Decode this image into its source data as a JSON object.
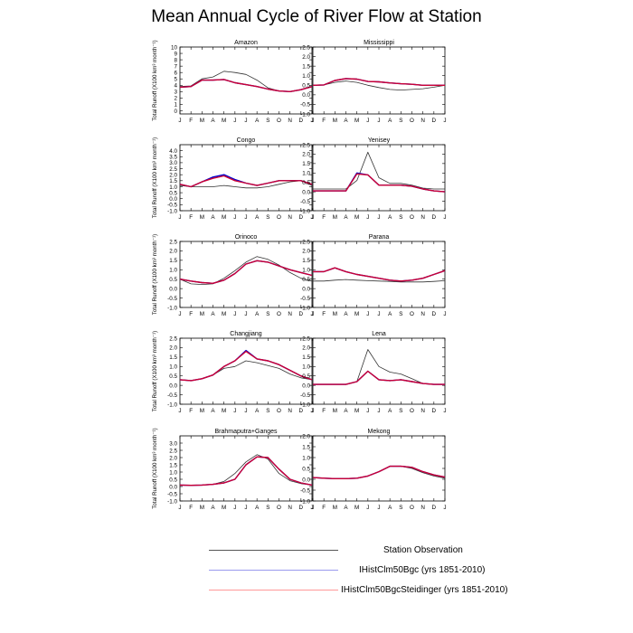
{
  "title": "Mean Annual Cycle of River Flow at Station",
  "months": [
    "J",
    "F",
    "M",
    "A",
    "M",
    "J",
    "J",
    "A",
    "S",
    "O",
    "N",
    "D",
    "J"
  ],
  "ylabel": "Total Runoff (X100 km³ month⁻¹)",
  "legend": [
    {
      "label": "Station Observation",
      "color": "#555555"
    },
    {
      "label": "IHistClm50Bgc (yrs 1851-2010)",
      "color": "#9999ee"
    },
    {
      "label": "IHistClm50BgcSteidinger (yrs 1851-2010)",
      "color": "#ff9999"
    }
  ],
  "series_colors": {
    "obs": "#333333",
    "bgc": "#0000cc",
    "steid": "#cc0033"
  },
  "chart_data": [
    {
      "type": "line",
      "title": "Amazon",
      "ylim": [
        -0.5,
        10
      ],
      "ticks": [
        0,
        1,
        2,
        3,
        4,
        5,
        6,
        7,
        8,
        9,
        10
      ],
      "series": [
        {
          "values": [
            3.8,
            3.9,
            5.0,
            5.3,
            6.2,
            6.0,
            5.7,
            4.8,
            3.6,
            3.1,
            3.0,
            3.3,
            3.8
          ]
        },
        {
          "values": [
            3.7,
            3.8,
            4.8,
            4.8,
            4.9,
            4.4,
            4.1,
            3.8,
            3.4,
            3.1,
            3.0,
            3.3,
            3.8
          ]
        },
        {
          "values": [
            3.7,
            3.8,
            4.8,
            4.8,
            4.9,
            4.4,
            4.1,
            3.8,
            3.4,
            3.1,
            3.0,
            3.3,
            3.8
          ]
        }
      ]
    },
    {
      "type": "line",
      "title": "Mississippi",
      "ylim": [
        -1.0,
        2.5
      ],
      "ticks": [
        -1.0,
        -0.5,
        0.0,
        0.5,
        1.0,
        1.5,
        2.0,
        2.5
      ],
      "series": [
        {
          "values": [
            0.5,
            0.52,
            0.65,
            0.72,
            0.65,
            0.5,
            0.38,
            0.28,
            0.25,
            0.28,
            0.32,
            0.4,
            0.5
          ]
        },
        {
          "values": [
            0.5,
            0.52,
            0.75,
            0.85,
            0.82,
            0.7,
            0.68,
            0.62,
            0.58,
            0.55,
            0.5,
            0.5,
            0.5
          ]
        },
        {
          "values": [
            0.5,
            0.52,
            0.75,
            0.85,
            0.82,
            0.7,
            0.68,
            0.62,
            0.58,
            0.55,
            0.5,
            0.5,
            0.5
          ]
        }
      ]
    },
    {
      "type": "line",
      "title": "Congo",
      "ylim": [
        -1.0,
        4.5
      ],
      "ticks": [
        -1.0,
        -0.5,
        0.0,
        0.5,
        1.0,
        1.5,
        2.0,
        2.5,
        3.0,
        3.5,
        4.0
      ],
      "series": [
        {
          "values": [
            1.1,
            1.0,
            1.0,
            1.0,
            1.1,
            1.0,
            0.9,
            0.9,
            1.0,
            1.2,
            1.4,
            1.5,
            1.1
          ]
        },
        {
          "values": [
            1.2,
            1.0,
            1.4,
            1.7,
            1.9,
            1.5,
            1.3,
            1.1,
            1.3,
            1.5,
            1.5,
            1.5,
            1.2
          ]
        },
        {
          "values": [
            1.2,
            1.0,
            1.4,
            1.8,
            2.0,
            1.6,
            1.3,
            1.1,
            1.3,
            1.5,
            1.5,
            1.5,
            1.2
          ]
        }
      ]
    },
    {
      "type": "line",
      "title": "Yenisey",
      "ylim": [
        -1.0,
        2.5
      ],
      "ticks": [
        -1.0,
        -0.5,
        0.0,
        0.5,
        1.0,
        1.5,
        2.0,
        2.5
      ],
      "series": [
        {
          "values": [
            0.15,
            0.15,
            0.15,
            0.15,
            0.6,
            2.1,
            0.75,
            0.45,
            0.45,
            0.35,
            0.2,
            0.15,
            0.15
          ]
        },
        {
          "values": [
            0.05,
            0.05,
            0.05,
            0.05,
            0.95,
            0.9,
            0.35,
            0.35,
            0.35,
            0.3,
            0.15,
            0.05,
            0.0
          ]
        },
        {
          "values": [
            0.05,
            0.05,
            0.05,
            0.05,
            1.0,
            0.9,
            0.35,
            0.35,
            0.35,
            0.3,
            0.15,
            0.05,
            0.0
          ]
        }
      ]
    },
    {
      "type": "line",
      "title": "Orinoco",
      "ylim": [
        -1.0,
        2.5
      ],
      "ticks": [
        -1.0,
        -0.5,
        0.0,
        0.5,
        1.0,
        1.5,
        2.0,
        2.5
      ],
      "series": [
        {
          "values": [
            0.5,
            0.25,
            0.22,
            0.25,
            0.55,
            0.95,
            1.4,
            1.7,
            1.55,
            1.25,
            0.85,
            0.55,
            0.4
          ]
        },
        {
          "values": [
            0.5,
            0.4,
            0.32,
            0.28,
            0.45,
            0.8,
            1.3,
            1.48,
            1.4,
            1.2,
            1.0,
            0.85,
            0.7
          ]
        },
        {
          "values": [
            0.5,
            0.4,
            0.32,
            0.28,
            0.45,
            0.8,
            1.3,
            1.48,
            1.4,
            1.2,
            1.0,
            0.85,
            0.7
          ]
        }
      ]
    },
    {
      "type": "line",
      "title": "Parana",
      "ylim": [
        -1.0,
        2.5
      ],
      "ticks": [
        -1.0,
        -0.5,
        0.0,
        0.5,
        1.0,
        1.5,
        2.0,
        2.5
      ],
      "series": [
        {
          "values": [
            0.4,
            0.4,
            0.45,
            0.48,
            0.45,
            0.42,
            0.4,
            0.38,
            0.35,
            0.35,
            0.35,
            0.38,
            0.42
          ]
        },
        {
          "values": [
            0.9,
            0.9,
            1.1,
            0.9,
            0.75,
            0.65,
            0.55,
            0.45,
            0.4,
            0.45,
            0.55,
            0.75,
            0.95
          ]
        },
        {
          "values": [
            0.9,
            0.9,
            1.1,
            0.9,
            0.75,
            0.65,
            0.55,
            0.45,
            0.4,
            0.45,
            0.55,
            0.75,
            0.95
          ]
        }
      ]
    },
    {
      "type": "line",
      "title": "Changjiang",
      "ylim": [
        -1.0,
        2.5
      ],
      "ticks": [
        -1.0,
        -0.5,
        0.0,
        0.5,
        1.0,
        1.5,
        2.0,
        2.5
      ],
      "series": [
        {
          "values": [
            0.3,
            0.25,
            0.35,
            0.55,
            0.9,
            1.0,
            1.3,
            1.2,
            1.05,
            0.9,
            0.6,
            0.4,
            0.3
          ]
        },
        {
          "values": [
            0.3,
            0.25,
            0.35,
            0.55,
            1.0,
            1.3,
            1.8,
            1.4,
            1.3,
            1.1,
            0.8,
            0.5,
            0.3
          ]
        },
        {
          "values": [
            0.3,
            0.25,
            0.35,
            0.55,
            1.0,
            1.3,
            1.85,
            1.4,
            1.3,
            1.1,
            0.8,
            0.5,
            0.3
          ]
        }
      ]
    },
    {
      "type": "line",
      "title": "Lena",
      "ylim": [
        -1.0,
        2.5
      ],
      "ticks": [
        -1.0,
        -0.5,
        0.0,
        0.5,
        1.0,
        1.5,
        2.0,
        2.5
      ],
      "series": [
        {
          "values": [
            0.05,
            0.05,
            0.05,
            0.05,
            0.2,
            1.9,
            1.0,
            0.7,
            0.6,
            0.35,
            0.1,
            0.05,
            0.05
          ]
        },
        {
          "values": [
            0.05,
            0.05,
            0.05,
            0.05,
            0.2,
            0.75,
            0.3,
            0.25,
            0.3,
            0.2,
            0.1,
            0.05,
            0.05
          ]
        },
        {
          "values": [
            0.05,
            0.05,
            0.05,
            0.05,
            0.2,
            0.75,
            0.3,
            0.25,
            0.3,
            0.2,
            0.1,
            0.05,
            0.05
          ]
        }
      ]
    },
    {
      "type": "line",
      "title": "Brahmaputra+Ganges",
      "ylim": [
        -1.0,
        3.5
      ],
      "ticks": [
        -1.0,
        -0.5,
        0.0,
        0.5,
        1.0,
        1.5,
        2.0,
        2.5,
        3.0
      ],
      "series": [
        {
          "values": [
            0.1,
            0.08,
            0.1,
            0.15,
            0.35,
            0.9,
            1.7,
            2.2,
            1.9,
            0.9,
            0.4,
            0.2,
            0.1
          ]
        },
        {
          "values": [
            0.1,
            0.08,
            0.1,
            0.15,
            0.25,
            0.5,
            1.5,
            2.05,
            2.0,
            1.2,
            0.5,
            0.25,
            0.1
          ]
        },
        {
          "values": [
            0.1,
            0.08,
            0.1,
            0.15,
            0.25,
            0.5,
            1.5,
            2.05,
            2.0,
            1.2,
            0.5,
            0.25,
            0.1
          ]
        }
      ]
    },
    {
      "type": "line",
      "title": "Mekong",
      "ylim": [
        -1.0,
        2.0
      ],
      "ticks": [
        -1.0,
        -0.5,
        0.0,
        0.5,
        1.0,
        1.5,
        2.0
      ],
      "series": [
        {
          "values": [
            0.08,
            0.05,
            0.03,
            0.03,
            0.05,
            0.15,
            0.35,
            0.6,
            0.6,
            0.5,
            0.3,
            0.15,
            0.05
          ]
        },
        {
          "values": [
            0.08,
            0.05,
            0.03,
            0.03,
            0.05,
            0.15,
            0.35,
            0.6,
            0.6,
            0.55,
            0.35,
            0.2,
            0.1
          ]
        },
        {
          "values": [
            0.08,
            0.05,
            0.03,
            0.03,
            0.05,
            0.15,
            0.35,
            0.6,
            0.6,
            0.55,
            0.35,
            0.2,
            0.1
          ]
        }
      ]
    }
  ]
}
